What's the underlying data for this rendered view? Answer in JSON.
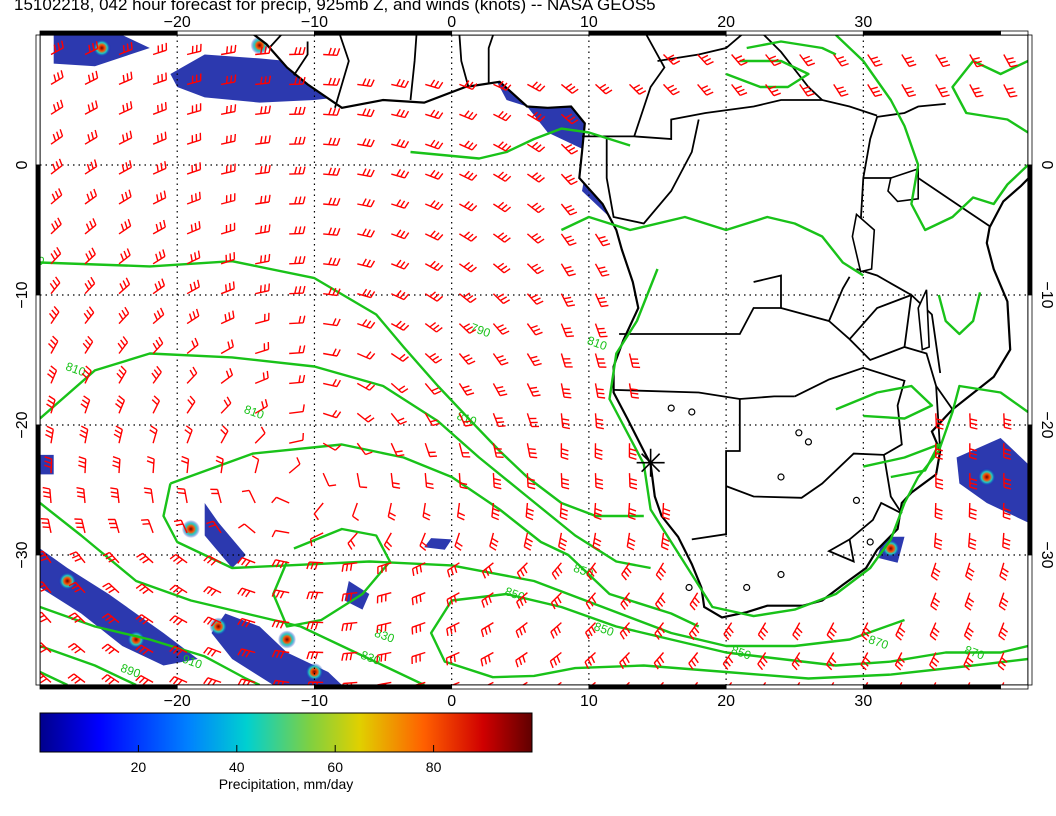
{
  "title": "15102218, 042 hour forecast for precip, 925mb Z, and winds (knots) -- NASA GEOS5",
  "map": {
    "lon_range": [
      -30,
      42
    ],
    "lat_range": [
      -40,
      10
    ],
    "lon_ticks": [
      -20,
      -10,
      0,
      10,
      20,
      30
    ],
    "lat_ticks": [
      0,
      -10,
      -20,
      -30
    ],
    "lon_tick_labels": [
      "−20",
      "−10",
      "0",
      "10",
      "20",
      "30"
    ],
    "lat_tick_labels": [
      "0",
      "−10",
      "−20",
      "−30"
    ],
    "grid": true,
    "contour_labels": [
      "790",
      "790",
      "810",
      "810",
      "810",
      "810",
      "830",
      "830",
      "850",
      "850",
      "850",
      "850",
      "870",
      "870",
      "890",
      "910"
    ],
    "marker_lon": 14.5,
    "marker_lat": -22.9
  },
  "colorbar": {
    "label": "Precipitation, mm/day",
    "ticks": [
      "20",
      "40",
      "60",
      "80"
    ],
    "tick_values": [
      20,
      40,
      60,
      80
    ],
    "range": [
      0,
      100
    ]
  },
  "colors": {
    "contour": "#19c219",
    "wind": "#ff0000",
    "precip_high": "#8b0000",
    "precip_low": "#00008b"
  }
}
